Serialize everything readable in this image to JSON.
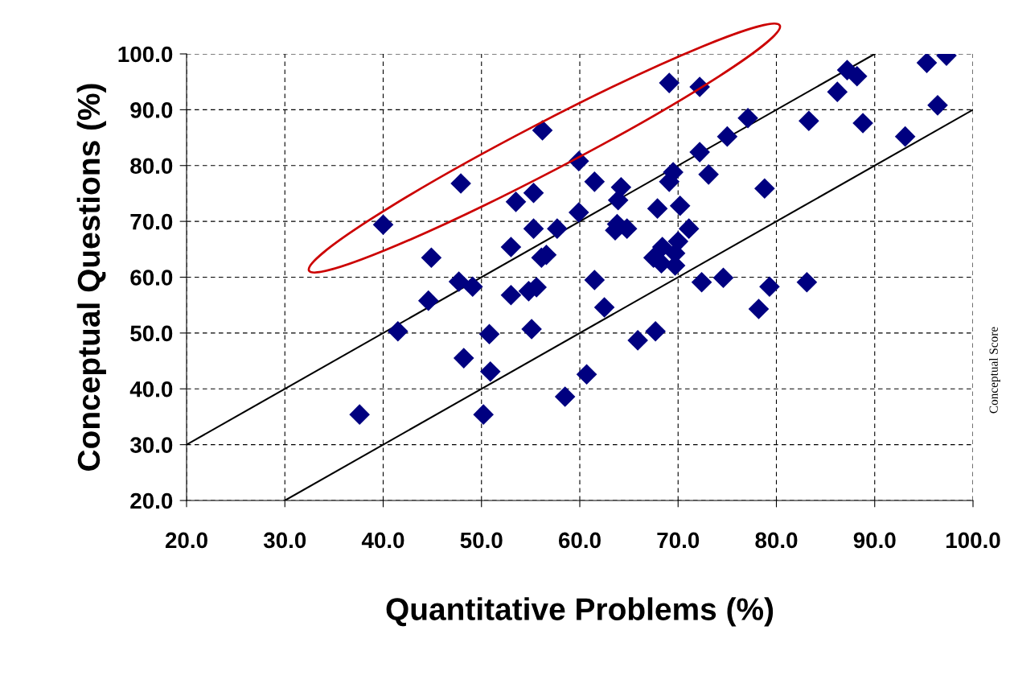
{
  "chart_data": {
    "type": "scatter",
    "xlabel": "Quantitative Problems (%)",
    "ylabel": "Conceptual Questions (%)",
    "annotations": [
      "Conceptual Score"
    ],
    "xlim": [
      20,
      100
    ],
    "ylim": [
      20,
      100
    ],
    "xticks": [
      {
        "value": 20,
        "label": "20.0"
      },
      {
        "value": 30,
        "label": "30.0"
      },
      {
        "value": 40,
        "label": "40.0"
      },
      {
        "value": 50,
        "label": "50.0"
      },
      {
        "value": 60,
        "label": "60.0"
      },
      {
        "value": 70,
        "label": "70.0"
      },
      {
        "value": 80,
        "label": "80.0"
      },
      {
        "value": 90,
        "label": "90.0"
      },
      {
        "value": 100,
        "label": "100.0"
      }
    ],
    "yticks": [
      {
        "value": 20,
        "label": "20.0"
      },
      {
        "value": 30,
        "label": "30.0"
      },
      {
        "value": 40,
        "label": "40.0"
      },
      {
        "value": 50,
        "label": "50.0"
      },
      {
        "value": 60,
        "label": "60.0"
      },
      {
        "value": 70,
        "label": "70.0"
      },
      {
        "value": 80,
        "label": "80.0"
      },
      {
        "value": 90,
        "label": "90.0"
      },
      {
        "value": 100,
        "label": "100.0"
      }
    ],
    "grid": true,
    "legend": false,
    "series": [
      {
        "type": "scatter",
        "color": "#000080",
        "marker": "diamond",
        "x": [
          37.6,
          40.0,
          41.5,
          44.9,
          44.6,
          47.7,
          49.1,
          47.9,
          48.2,
          50.2,
          50.8,
          50.9,
          53.0,
          53.0,
          54.8,
          55.6,
          55.1,
          56.1,
          56.6,
          61.5,
          62.5,
          60.7,
          58.5,
          65.9,
          56.2,
          59.9,
          61.5,
          64.2,
          63.9,
          55.3,
          53.5,
          59.9,
          55.3,
          57.7,
          63.6,
          64.8,
          63.8,
          69.1,
          72.2,
          87.2,
          88.2,
          86.2,
          95.3,
          97.3,
          96.4,
          88.8,
          83.3,
          77.1,
          75.0,
          72.2,
          93.1,
          69.5,
          69.1,
          73.1,
          78.8,
          67.9,
          70.2,
          71.1,
          70.0,
          68.4,
          69.7,
          67.5,
          68.3,
          69.7,
          72.4,
          74.6,
          79.3,
          78.2,
          83.1,
          67.7
        ],
        "values": [
          35.4,
          69.4,
          50.3,
          63.5,
          55.8,
          59.2,
          58.3,
          76.8,
          45.5,
          35.4,
          49.8,
          43.1,
          56.8,
          65.4,
          57.5,
          58.2,
          50.7,
          63.5,
          64.0,
          59.5,
          54.6,
          42.6,
          38.6,
          48.7,
          86.3,
          80.8,
          77.1,
          76.1,
          73.8,
          75.1,
          73.5,
          71.6,
          68.7,
          68.7,
          68.4,
          68.7,
          69.5,
          94.8,
          94.1,
          97.1,
          96.0,
          93.2,
          98.4,
          99.7,
          90.8,
          87.6,
          88.0,
          88.5,
          85.2,
          82.4,
          85.2,
          78.8,
          77.1,
          78.4,
          75.9,
          72.3,
          72.8,
          68.7,
          66.4,
          65.4,
          64.3,
          63.5,
          62.5,
          62.1,
          59.1,
          59.9,
          58.3,
          54.3,
          59.1,
          50.3
        ]
      },
      {
        "type": "line",
        "color": "#000000",
        "line_style": "solid",
        "x": [
          20,
          90
        ],
        "values": [
          30,
          100
        ]
      },
      {
        "type": "line",
        "color": "#000000",
        "line_style": "solid",
        "x": [
          30,
          100
        ],
        "values": [
          20,
          90
        ]
      }
    ]
  }
}
